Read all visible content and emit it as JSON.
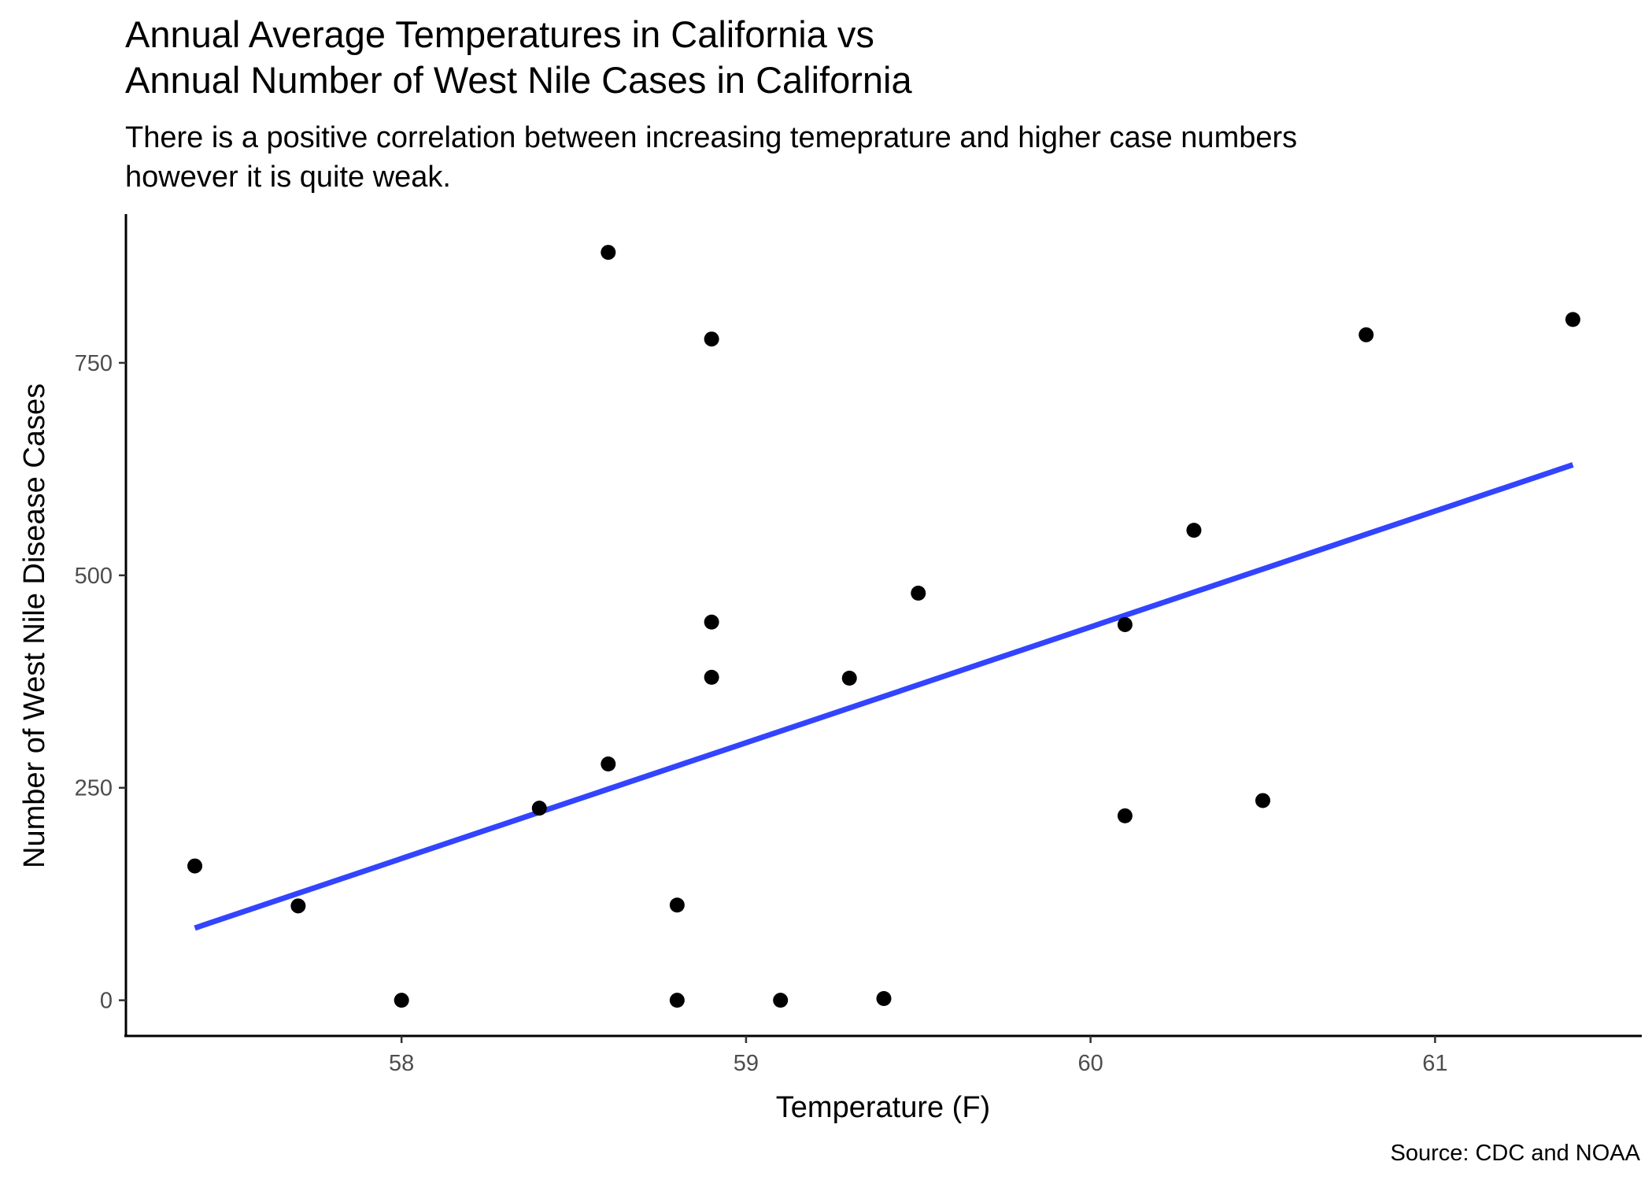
{
  "chart_data": {
    "type": "scatter",
    "title_lines": [
      "Annual Average Temperatures in California vs",
      "Annual Number of West Nile Cases in California"
    ],
    "subtitle_lines": [
      "There is a positive correlation between increasing temeprature and higher case numbers",
      "however it is quite weak."
    ],
    "xlabel": "Temperature (F)",
    "ylabel": "Number of West Nile Disease Cases",
    "caption": "Source: CDC and NOAA",
    "xlim": [
      57.2,
      61.6
    ],
    "ylim": [
      -42,
      925
    ],
    "xticks": [
      58,
      59,
      60,
      61
    ],
    "yticks": [
      0,
      250,
      500,
      750
    ],
    "grid": false,
    "points": [
      {
        "x": 57.4,
        "y": 158
      },
      {
        "x": 57.7,
        "y": 111
      },
      {
        "x": 58.0,
        "y": 0
      },
      {
        "x": 58.4,
        "y": 226
      },
      {
        "x": 58.6,
        "y": 880
      },
      {
        "x": 58.6,
        "y": 278
      },
      {
        "x": 58.8,
        "y": 112
      },
      {
        "x": 58.8,
        "y": 0
      },
      {
        "x": 58.9,
        "y": 778
      },
      {
        "x": 58.9,
        "y": 445
      },
      {
        "x": 58.9,
        "y": 380
      },
      {
        "x": 59.1,
        "y": 0
      },
      {
        "x": 59.3,
        "y": 379
      },
      {
        "x": 59.4,
        "y": 2
      },
      {
        "x": 59.5,
        "y": 479
      },
      {
        "x": 60.1,
        "y": 442
      },
      {
        "x": 60.1,
        "y": 217
      },
      {
        "x": 60.3,
        "y": 553
      },
      {
        "x": 60.5,
        "y": 235
      },
      {
        "x": 60.8,
        "y": 783
      },
      {
        "x": 61.4,
        "y": 801
      }
    ],
    "trendline": {
      "x": [
        57.4,
        61.4
      ],
      "y": [
        85,
        630
      ],
      "color": "#3344ff"
    },
    "point_color": "#000000"
  }
}
